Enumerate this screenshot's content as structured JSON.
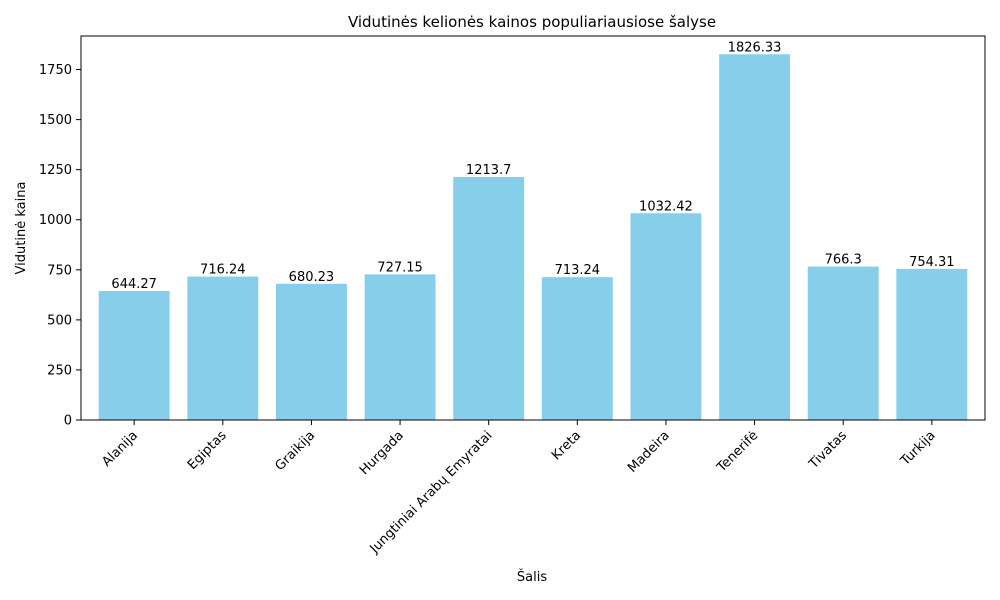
{
  "chart_data": {
    "type": "bar",
    "title": "Vidutinės kelionės kainos populiariausiose šalyse",
    "xlabel": "Šalis",
    "ylabel": "Vidutinė kaina",
    "categories": [
      "Alanija",
      "Egiptas",
      "Graikija",
      "Hurgada",
      "Jungtiniai Arabų Emyratai",
      "Kreta",
      "Madeira",
      "Tenerifė",
      "Tivatas",
      "Turkija"
    ],
    "values": [
      644.27,
      716.24,
      680.23,
      727.15,
      1213.7,
      713.24,
      1032.42,
      1826.33,
      766.3,
      754.31
    ],
    "value_labels": [
      "644.27",
      "716.24",
      "680.23",
      "727.15",
      "1213.7",
      "713.24",
      "1032.42",
      "1826.33",
      "766.3",
      "754.31"
    ],
    "ylim": [
      0,
      1917.6
    ],
    "yticks": [
      0,
      250,
      500,
      750,
      1000,
      1250,
      1500,
      1750
    ],
    "grid": false,
    "bar_color": "#87CEEB",
    "x_tick_rotation_deg": 45
  }
}
